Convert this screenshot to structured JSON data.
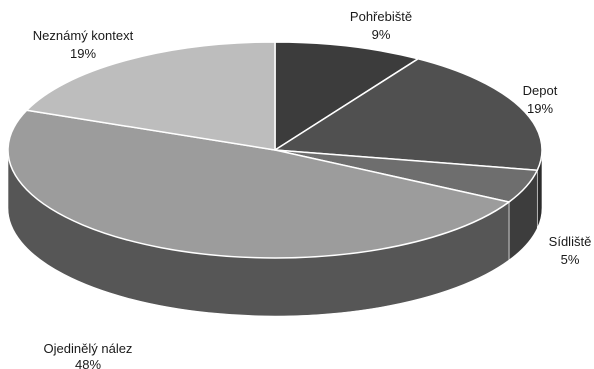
{
  "chart_data": {
    "type": "pie",
    "title": "",
    "slices": [
      {
        "name": "Pohřebiště",
        "value": 9,
        "label": "9%",
        "color": "#3c3c3c"
      },
      {
        "name": "Depot",
        "value": 19,
        "label": "19%",
        "color": "#505050"
      },
      {
        "name": "Sídliště",
        "value": 5,
        "label": "5%",
        "color": "#6e6e6e"
      },
      {
        "name": "Ojedinělý nález",
        "value": 48,
        "label": "48%",
        "color": "#9c9c9c"
      },
      {
        "name": "Neznámý kontext",
        "value": 19,
        "label": "19%",
        "color": "#bdbdbd"
      }
    ],
    "style": "3d",
    "legend": "none"
  }
}
